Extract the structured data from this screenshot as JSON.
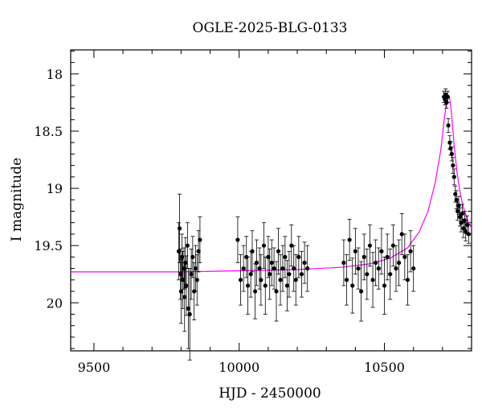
{
  "chart_data": {
    "type": "scatter",
    "title": "OGLE-2025-BLG-0133",
    "xlabel": "HJD - 2450000",
    "ylabel": "I magnitude",
    "xlim": [
      9420,
      10800
    ],
    "ylim": [
      20.42,
      17.79
    ],
    "y_inverted": true,
    "x_ticks": [
      9500,
      10000,
      10500
    ],
    "y_ticks": [
      18,
      18.5,
      19,
      19.5,
      20
    ],
    "y_tick_labels": [
      "18",
      "18.5",
      "19",
      "19.5",
      "20"
    ],
    "x_tick_labels": [
      "9500",
      "10000",
      "10500"
    ],
    "grid": false,
    "colors": {
      "points": "#000000",
      "model": "#ff00ff"
    },
    "model": {
      "name": "",
      "x": [
        9420,
        9600,
        9800,
        10000,
        10200,
        10350,
        10450,
        10520,
        10580,
        10620,
        10650,
        10675,
        10695,
        10705,
        10712,
        10718,
        10722,
        10726,
        10730,
        10735,
        10740,
        10750,
        10760,
        10770,
        10785,
        10800
      ],
      "y": [
        19.73,
        19.73,
        19.73,
        19.72,
        19.71,
        19.69,
        19.66,
        19.61,
        19.52,
        19.38,
        19.2,
        18.95,
        18.65,
        18.42,
        18.28,
        18.21,
        18.2,
        18.23,
        18.32,
        18.47,
        18.62,
        18.86,
        19.03,
        19.15,
        19.27,
        19.35
      ]
    },
    "series": [
      {
        "name": "",
        "x": [
          9792,
          9795,
          9798,
          9800,
          9803,
          9806,
          9810,
          9812,
          9815,
          9818,
          9822,
          9825,
          9830,
          9835,
          9840,
          9845,
          9850,
          9855,
          9860,
          9865,
          9995,
          10005,
          10015,
          10025,
          10030,
          10040,
          10045,
          10055,
          10060,
          10070,
          10075,
          10085,
          10090,
          10100,
          10105,
          10112,
          10120,
          10128,
          10135,
          10142,
          10150,
          10158,
          10165,
          10172,
          10180,
          10188,
          10195,
          10205,
          10215,
          10225,
          10235,
          10360,
          10370,
          10380,
          10390,
          10400,
          10410,
          10420,
          10430,
          10440,
          10450,
          10460,
          10470,
          10480,
          10490,
          10500,
          10510,
          10520,
          10530,
          10540,
          10550,
          10560,
          10570,
          10580,
          10590,
          10600,
          10705,
          10708,
          10711,
          10714,
          10718,
          10720,
          10725,
          10728,
          10732,
          10736,
          10740,
          10744,
          10748,
          10752,
          10756,
          10760,
          10764,
          10768,
          10772,
          10776,
          10780,
          10785,
          10790
        ],
        "y": [
          19.55,
          19.35,
          19.75,
          19.9,
          19.6,
          19.8,
          19.7,
          19.95,
          19.65,
          19.85,
          19.5,
          20.05,
          20.1,
          19.75,
          19.6,
          19.9,
          19.7,
          19.8,
          19.55,
          19.45,
          19.45,
          19.8,
          19.7,
          19.6,
          19.85,
          19.75,
          19.55,
          19.9,
          19.65,
          19.7,
          19.8,
          19.5,
          19.85,
          19.6,
          19.75,
          19.65,
          19.7,
          19.9,
          19.55,
          19.8,
          19.7,
          19.6,
          19.85,
          19.75,
          19.5,
          19.7,
          19.8,
          19.6,
          19.75,
          19.65,
          19.7,
          19.65,
          19.8,
          19.45,
          19.85,
          19.55,
          19.7,
          19.9,
          19.6,
          19.75,
          19.5,
          19.8,
          19.65,
          19.7,
          19.55,
          19.85,
          19.6,
          19.75,
          19.5,
          19.7,
          19.65,
          19.4,
          19.6,
          19.8,
          19.55,
          19.7,
          18.2,
          18.22,
          18.18,
          18.25,
          18.2,
          18.45,
          18.6,
          18.65,
          18.7,
          18.8,
          18.9,
          19.05,
          19.1,
          19.2,
          19.15,
          19.25,
          19.3,
          19.22,
          19.35,
          19.28,
          19.38,
          19.32,
          19.4
        ],
        "err": [
          0.25,
          0.3,
          0.22,
          0.28,
          0.2,
          0.25,
          0.18,
          0.3,
          0.22,
          0.26,
          0.2,
          0.35,
          0.4,
          0.22,
          0.18,
          0.25,
          0.2,
          0.22,
          0.18,
          0.2,
          0.2,
          0.22,
          0.2,
          0.18,
          0.25,
          0.2,
          0.18,
          0.24,
          0.2,
          0.18,
          0.22,
          0.2,
          0.25,
          0.18,
          0.22,
          0.2,
          0.18,
          0.26,
          0.2,
          0.22,
          0.2,
          0.18,
          0.22,
          0.2,
          0.18,
          0.2,
          0.22,
          0.18,
          0.2,
          0.18,
          0.2,
          0.2,
          0.22,
          0.18,
          0.24,
          0.2,
          0.18,
          0.26,
          0.2,
          0.22,
          0.18,
          0.24,
          0.2,
          0.18,
          0.2,
          0.25,
          0.2,
          0.22,
          0.18,
          0.2,
          0.2,
          0.18,
          0.2,
          0.22,
          0.18,
          0.2,
          0.05,
          0.05,
          0.05,
          0.05,
          0.05,
          0.06,
          0.06,
          0.06,
          0.06,
          0.07,
          0.07,
          0.07,
          0.08,
          0.08,
          0.08,
          0.08,
          0.08,
          0.08,
          0.08,
          0.08,
          0.08,
          0.08,
          0.08
        ]
      }
    ]
  }
}
